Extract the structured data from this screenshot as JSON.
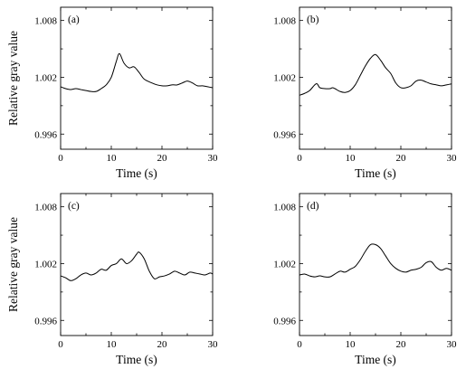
{
  "chart_data": [
    {
      "type": "line",
      "panel_label": "(a)",
      "xlabel": "Time (s)",
      "ylabel": "Relative gray value",
      "xlim": [
        0,
        30
      ],
      "ylim": [
        0.9944,
        1.0094
      ],
      "xticks": [
        0,
        10,
        20,
        30
      ],
      "yticks": [
        0.996,
        1.002,
        1.008
      ],
      "xtick_labels": [
        "0",
        "10",
        "20",
        "30"
      ],
      "ytick_labels": [
        "0.996",
        "1.002",
        "1.008"
      ],
      "legend": "none",
      "grid": false,
      "series": [
        {
          "x": [
            0,
            1,
            2,
            3,
            4,
            5,
            6,
            7,
            8,
            9,
            10,
            11,
            11.6,
            12.5,
            13.5,
            14.5,
            15.5,
            16.5,
            18,
            19,
            20,
            21,
            22,
            23,
            24,
            25,
            26,
            27,
            28,
            29,
            30
          ],
          "y": [
            1.001,
            1.0008,
            1.0007,
            1.0008,
            1.0007,
            1.0006,
            1.0005,
            1.0005,
            1.0008,
            1.0012,
            1.002,
            1.0037,
            1.0045,
            1.0035,
            1.003,
            1.0031,
            1.0025,
            1.0018,
            1.0014,
            1.0012,
            1.0011,
            1.0011,
            1.0012,
            1.0012,
            1.0014,
            1.0016,
            1.0014,
            1.0011,
            1.0011,
            1.001,
            1.0009
          ]
        }
      ]
    },
    {
      "type": "line",
      "panel_label": "(b)",
      "xlabel": "Time (s)",
      "ylabel": "",
      "xlim": [
        0,
        30
      ],
      "ylim": [
        0.9944,
        1.0094
      ],
      "xticks": [
        0,
        10,
        20,
        30
      ],
      "yticks": [
        0.996,
        1.002,
        1.008
      ],
      "xtick_labels": [
        "0",
        "10",
        "20",
        "30"
      ],
      "ytick_labels": [
        "0.996",
        "1.002",
        "1.008"
      ],
      "legend": "none",
      "grid": false,
      "series": [
        {
          "x": [
            0,
            1,
            2,
            3,
            3.5,
            4,
            5,
            6,
            6.5,
            7,
            8,
            9,
            10,
            11,
            12,
            13,
            14,
            15,
            16,
            17,
            18,
            19,
            20,
            21,
            22,
            23,
            24,
            25,
            26,
            27,
            28,
            29,
            30
          ],
          "y": [
            1.0001,
            1.0003,
            1.0006,
            1.0012,
            1.0013,
            1.0009,
            1.0008,
            1.0008,
            1.0009,
            1.0008,
            1.0005,
            1.0004,
            1.0006,
            1.0012,
            1.0022,
            1.0032,
            1.004,
            1.0044,
            1.0038,
            1.003,
            1.0024,
            1.0014,
            1.0009,
            1.0009,
            1.0011,
            1.0016,
            1.0017,
            1.0015,
            1.0013,
            1.0012,
            1.0011,
            1.0012,
            1.0013
          ]
        }
      ]
    },
    {
      "type": "line",
      "panel_label": "(c)",
      "xlabel": "Time (s)",
      "ylabel": "Relative gray value",
      "xlim": [
        0,
        30
      ],
      "ylim": [
        0.9944,
        1.0094
      ],
      "xticks": [
        0,
        10,
        20,
        30
      ],
      "yticks": [
        0.996,
        1.002,
        1.008
      ],
      "xtick_labels": [
        "0",
        "10",
        "20",
        "30"
      ],
      "ytick_labels": [
        "0.996",
        "1.002",
        "1.008"
      ],
      "legend": "none",
      "grid": false,
      "series": [
        {
          "x": [
            0,
            1,
            2,
            3,
            4,
            5,
            6,
            7,
            8,
            9,
            10,
            11,
            12,
            13,
            14,
            15,
            15.5,
            16.5,
            17.5,
            18.5,
            19.5,
            20.5,
            21.5,
            22.5,
            23.5,
            24.5,
            25.5,
            26.5,
            27.5,
            28.5,
            29.5,
            30
          ],
          "y": [
            1.0007,
            1.0005,
            1.0002,
            1.0004,
            1.0008,
            1.001,
            1.0008,
            1.001,
            1.0014,
            1.0013,
            1.0018,
            1.002,
            1.0025,
            1.002,
            1.0023,
            1.003,
            1.0032,
            1.0025,
            1.0012,
            1.0004,
            1.0006,
            1.0007,
            1.0009,
            1.0012,
            1.001,
            1.0008,
            1.0011,
            1.001,
            1.0009,
            1.0008,
            1.001,
            1.0009
          ]
        }
      ]
    },
    {
      "type": "line",
      "panel_label": "(d)",
      "xlabel": "Time (s)",
      "ylabel": "",
      "xlim": [
        0,
        30
      ],
      "ylim": [
        0.9944,
        1.0094
      ],
      "xticks": [
        0,
        10,
        20,
        30
      ],
      "yticks": [
        0.996,
        1.002,
        1.008
      ],
      "xtick_labels": [
        "0",
        "10",
        "20",
        "30"
      ],
      "ytick_labels": [
        "0.996",
        "1.002",
        "1.008"
      ],
      "legend": "none",
      "grid": false,
      "series": [
        {
          "x": [
            0,
            1,
            2,
            3,
            4,
            5,
            6,
            7,
            8,
            9,
            10,
            11,
            12,
            13,
            14,
            15,
            16,
            17,
            18,
            19,
            20,
            21,
            22,
            23,
            24,
            25,
            26,
            27,
            28,
            29,
            30
          ],
          "y": [
            1.0008,
            1.0009,
            1.0007,
            1.0006,
            1.0007,
            1.0006,
            1.0006,
            1.0009,
            1.0012,
            1.0011,
            1.0014,
            1.0017,
            1.0024,
            1.0033,
            1.004,
            1.004,
            1.0036,
            1.0028,
            1.002,
            1.0015,
            1.0012,
            1.0011,
            1.0013,
            1.0014,
            1.0016,
            1.0021,
            1.0022,
            1.0016,
            1.0013,
            1.0015,
            1.0013
          ]
        }
      ]
    }
  ]
}
